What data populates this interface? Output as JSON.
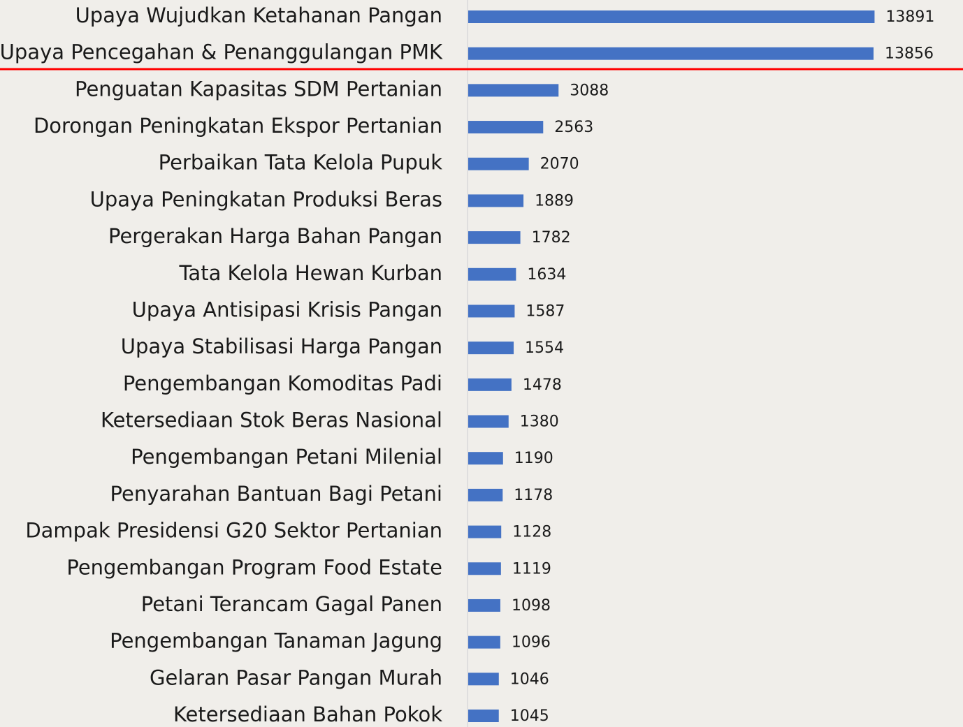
{
  "chart_data": {
    "type": "bar",
    "orientation": "horizontal",
    "categories": [
      "Upaya Wujudkan Ketahanan Pangan",
      "Upaya Pencegahan & Penanggulangan PMK",
      "Penguatan Kapasitas SDM Pertanian",
      "Dorongan Peningkatan Ekspor Pertanian",
      "Perbaikan Tata Kelola Pupuk",
      "Upaya Peningkatan Produksi Beras",
      "Pergerakan Harga Bahan Pangan",
      "Tata Kelola Hewan Kurban",
      "Upaya Antisipasi Krisis Pangan",
      "Upaya Stabilisasi Harga Pangan",
      "Pengembangan Komoditas Padi",
      "Ketersediaan Stok Beras Nasional",
      "Pengembangan Petani Milenial",
      "Penyarahan Bantuan Bagi Petani",
      "Dampak Presidensi G20 Sektor Pertanian",
      "Pengembangan Program Food Estate",
      "Petani Terancam Gagal Panen",
      "Pengembangan Tanaman Jagung",
      "Gelaran Pasar Pangan Murah",
      "Ketersediaan Bahan Pokok"
    ],
    "values": [
      13891,
      13856,
      3088,
      2563,
      2070,
      1889,
      1782,
      1634,
      1587,
      1554,
      1478,
      1380,
      1190,
      1178,
      1128,
      1119,
      1098,
      1096,
      1046,
      1045
    ],
    "color": "#4472c4",
    "xlim": [
      0,
      14000
    ]
  }
}
